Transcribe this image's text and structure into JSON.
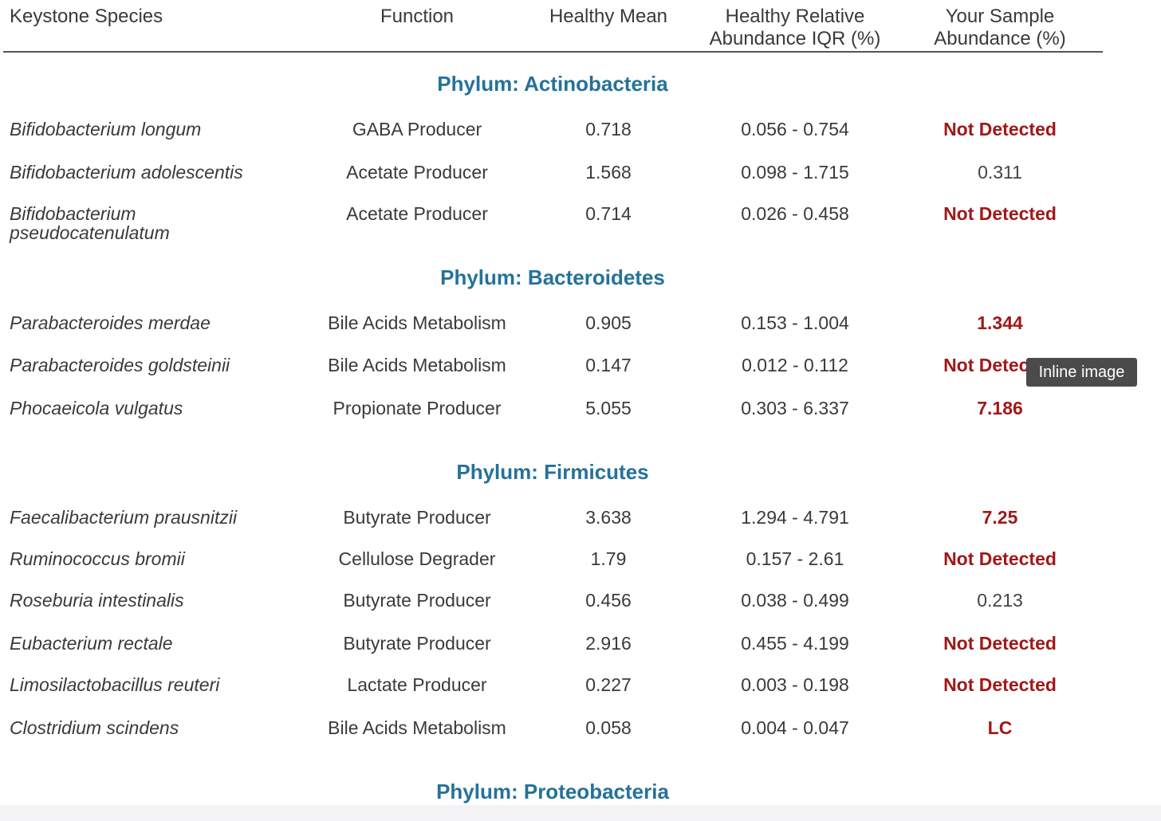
{
  "header": {
    "columns": [
      "Keystone Species",
      "Function",
      "Healthy Mean",
      "Healthy Relative Abundance IQR (%)",
      "Your Sample Abundance (%)"
    ]
  },
  "sections": [
    {
      "title": "Phylum: Actinobacteria",
      "rows": [
        {
          "species": "Bifidobacterium longum",
          "function": "GABA Producer",
          "mean": "0.718",
          "iqr": "0.056 - 0.754",
          "sample": "Not Detected",
          "sample_color": "#a01818"
        },
        {
          "species": "Bifidobacterium adolescentis",
          "function": "Acetate Producer",
          "mean": "1.568",
          "iqr": "0.098 - 1.715",
          "sample": "0.311",
          "sample_color": "#444444"
        },
        {
          "species": "Bifidobacterium pseudocatenulatum",
          "function": "Acetate Producer",
          "mean": "0.714",
          "iqr": "0.026 - 0.458",
          "sample": "Not Detected",
          "sample_color": "#a01818"
        }
      ]
    },
    {
      "title": "Phylum: Bacteroidetes",
      "rows": [
        {
          "species": "Parabacteroides merdae",
          "function": "Bile Acids Metabolism",
          "mean": "0.905",
          "iqr": "0.153 - 1.004",
          "sample": "1.344",
          "sample_color": "#a01818"
        },
        {
          "species": "Parabacteroides goldsteinii",
          "function": "Bile Acids Metabolism",
          "mean": "0.147",
          "iqr": "0.012 - 0.112",
          "sample": "Not Detected",
          "sample_color": "#a01818"
        },
        {
          "species": "Phocaeicola vulgatus",
          "function": "Propionate Producer",
          "mean": "5.055",
          "iqr": "0.303 - 6.337",
          "sample": "7.186",
          "sample_color": "#a01818"
        }
      ]
    },
    {
      "title": "Phylum: Firmicutes",
      "rows": [
        {
          "species": "Faecalibacterium prausnitzii",
          "function": "Butyrate Producer",
          "mean": "3.638",
          "iqr": "1.294 - 4.791",
          "sample": "7.25",
          "sample_color": "#a01818"
        },
        {
          "species": "Ruminococcus bromii",
          "function": "Cellulose Degrader",
          "mean": "1.79",
          "iqr": "0.157 - 2.61",
          "sample": "Not Detected",
          "sample_color": "#a01818"
        },
        {
          "species": "Roseburia intestinalis",
          "function": "Butyrate Producer",
          "mean": "0.456",
          "iqr": "0.038 - 0.499",
          "sample": "0.213",
          "sample_color": "#444444"
        },
        {
          "species": "Eubacterium rectale",
          "function": "Butyrate Producer",
          "mean": "2.916",
          "iqr": "0.455 - 4.199",
          "sample": "Not Detected",
          "sample_color": "#a01818"
        },
        {
          "species": "Limosilactobacillus reuteri",
          "function": "Lactate Producer",
          "mean": "0.227",
          "iqr": "0.003 - 0.198",
          "sample": "Not Detected",
          "sample_color": "#a01818"
        },
        {
          "species": "Clostridium scindens",
          "function": "Bile Acids Metabolism",
          "mean": "0.058",
          "iqr": "0.004 - 0.047",
          "sample": "LC",
          "sample_color": "#a01818"
        }
      ]
    },
    {
      "title": "Phylum: Proteobacteria"
    }
  ],
  "tooltip": "Inline image"
}
